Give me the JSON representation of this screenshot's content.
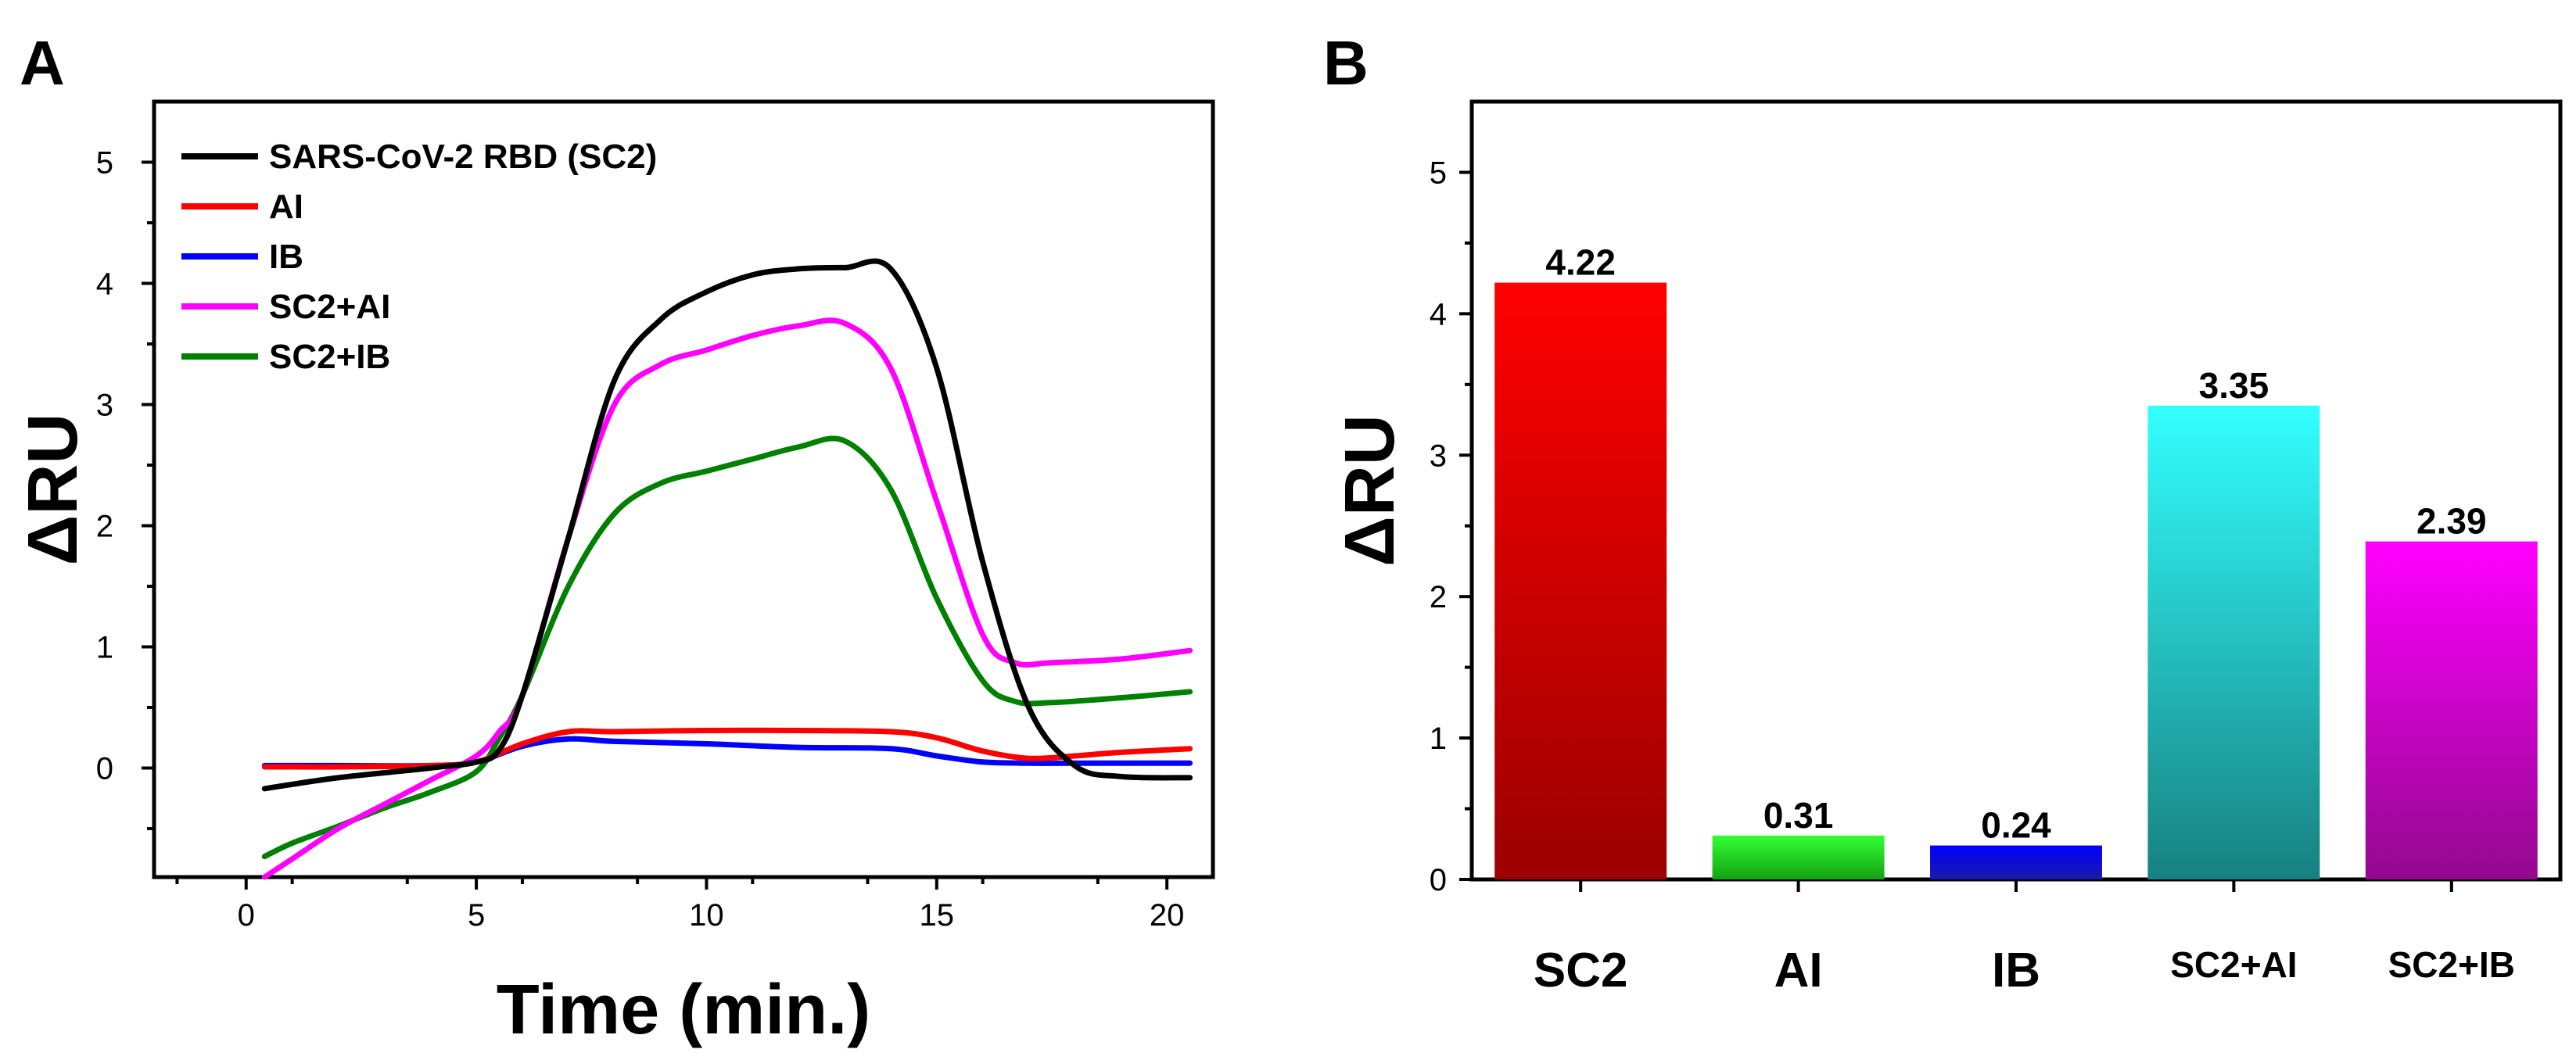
{
  "chart_data": [
    {
      "panel": "A",
      "type": "line",
      "title": "",
      "xlabel": "Time (min.)",
      "ylabel": "ΔRU",
      "xlim": [
        -2,
        21
      ],
      "ylim": [
        -0.9,
        5.5
      ],
      "xticks": [
        0,
        5,
        10,
        15,
        20
      ],
      "yticks": [
        0,
        1,
        2,
        3,
        4,
        5
      ],
      "grid": false,
      "legend_position": "top-left",
      "series": [
        {
          "name": "SARS-CoV-2 RBD (SC2)",
          "color": "#000000",
          "x": [
            0.4,
            2,
            4,
            5,
            5.5,
            6,
            7,
            8,
            9,
            10,
            11,
            12,
            13,
            14,
            15,
            16,
            17,
            18,
            19,
            20.5
          ],
          "y": [
            -0.17,
            -0.08,
            0.0,
            0.05,
            0.15,
            0.6,
            1.9,
            3.2,
            3.7,
            3.93,
            4.07,
            4.12,
            4.13,
            4.12,
            3.3,
            1.7,
            0.5,
            0.02,
            -0.07,
            -0.08
          ]
        },
        {
          "name": "AI",
          "color": "#ff0000",
          "x": [
            0.4,
            2,
            4,
            5,
            6,
            7,
            8,
            10,
            12,
            14,
            15,
            16,
            17,
            18,
            19,
            20.5
          ],
          "y": [
            0.01,
            0.01,
            0.02,
            0.05,
            0.2,
            0.3,
            0.3,
            0.31,
            0.31,
            0.3,
            0.25,
            0.14,
            0.08,
            0.1,
            0.13,
            0.16
          ]
        },
        {
          "name": "IB",
          "color": "#0000ff",
          "x": [
            0.4,
            2,
            4,
            5,
            6,
            7,
            8,
            10,
            12,
            14,
            15,
            16,
            17,
            18,
            20.5
          ],
          "y": [
            0.02,
            0.02,
            0.02,
            0.05,
            0.18,
            0.24,
            0.22,
            0.2,
            0.17,
            0.16,
            0.1,
            0.05,
            0.04,
            0.04,
            0.04
          ]
        },
        {
          "name": "SC2+AI",
          "color": "#ff00ff",
          "x": [
            0.4,
            1,
            2,
            3,
            4,
            5,
            5.5,
            6,
            7,
            8,
            9,
            10,
            11,
            12,
            13,
            14,
            15,
            16,
            16.7,
            17.5,
            19,
            20.5
          ],
          "y": [
            -0.9,
            -0.75,
            -0.5,
            -0.3,
            -0.1,
            0.1,
            0.3,
            0.6,
            1.9,
            3.0,
            3.33,
            3.45,
            3.57,
            3.65,
            3.67,
            3.3,
            2.2,
            1.1,
            0.87,
            0.87,
            0.9,
            0.97
          ]
        },
        {
          "name": "SC2+IB",
          "color": "#008000",
          "x": [
            0.4,
            1,
            2,
            3,
            4,
            5,
            5.5,
            6,
            7,
            8,
            9,
            10,
            11,
            12,
            13,
            14,
            15,
            16,
            16.7,
            17.5,
            19,
            20.5
          ],
          "y": [
            -0.73,
            -0.62,
            -0.48,
            -0.33,
            -0.2,
            -0.03,
            0.25,
            0.6,
            1.5,
            2.1,
            2.35,
            2.45,
            2.55,
            2.65,
            2.7,
            2.3,
            1.4,
            0.72,
            0.55,
            0.54,
            0.58,
            0.63
          ]
        }
      ]
    },
    {
      "panel": "B",
      "type": "bar",
      "title": "",
      "xlabel": "",
      "ylabel": "ΔRU",
      "ylim": [
        0,
        5.5
      ],
      "yticks": [
        0,
        1,
        2,
        3,
        4,
        5
      ],
      "grid": false,
      "categories": [
        "SC2",
        "AI",
        "IB",
        "SC2+AI",
        "SC2+IB"
      ],
      "values": [
        4.22,
        0.31,
        0.24,
        3.35,
        2.39
      ],
      "data_labels": [
        "4.22",
        "0.31",
        "0.24",
        "3.35",
        "2.39"
      ],
      "colors_top": [
        "#ff0000",
        "#33ff33",
        "#0000ff",
        "#33ffff",
        "#ff00ff"
      ],
      "colors_bottom": [
        "#9b0000",
        "#14a014",
        "#1a1aa8",
        "#178080",
        "#93088e"
      ]
    }
  ],
  "labels": {
    "panel_a": "A",
    "panel_b": "B"
  }
}
